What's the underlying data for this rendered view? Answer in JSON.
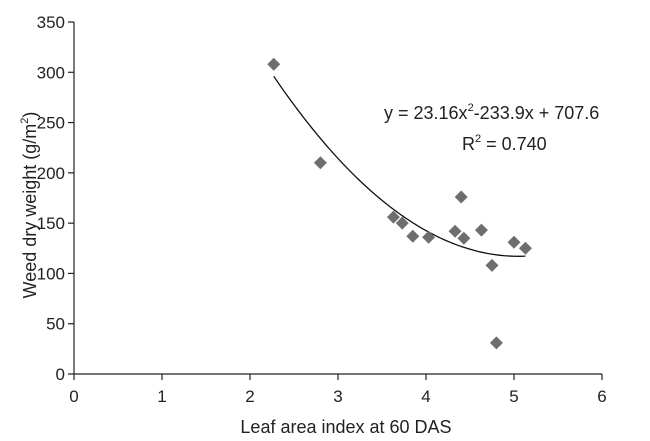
{
  "chart_data": {
    "type": "scatter",
    "xlabel": "Leaf area index at 60 DAS",
    "ylabel_main": "Weed dry weight (g/m",
    "ylabel_sup": "2",
    "ylabel_close": ")",
    "xlim": [
      0,
      6
    ],
    "ylim": [
      0,
      350
    ],
    "x_ticks": [
      "0",
      "1",
      "2",
      "3",
      "4",
      "5",
      "6"
    ],
    "y_ticks": [
      "0",
      "50",
      "100",
      "150",
      "200",
      "250",
      "300",
      "350"
    ],
    "grid": false,
    "marker": "diamond",
    "marker_color": "#6e6e6e",
    "points": [
      {
        "x": 2.27,
        "y": 308
      },
      {
        "x": 2.8,
        "y": 210
      },
      {
        "x": 3.63,
        "y": 156
      },
      {
        "x": 3.73,
        "y": 150
      },
      {
        "x": 3.85,
        "y": 137
      },
      {
        "x": 4.03,
        "y": 136
      },
      {
        "x": 4.33,
        "y": 142
      },
      {
        "x": 4.4,
        "y": 176
      },
      {
        "x": 4.43,
        "y": 135
      },
      {
        "x": 4.63,
        "y": 143
      },
      {
        "x": 4.75,
        "y": 108
      },
      {
        "x": 4.8,
        "y": 31
      },
      {
        "x": 5.0,
        "y": 131
      },
      {
        "x": 5.13,
        "y": 125
      }
    ],
    "trendline": {
      "type": "polynomial",
      "coefficients": [
        23.16,
        -233.9,
        707.6
      ],
      "x_range": [
        2.27,
        5.13
      ]
    },
    "annotation": {
      "equation_a": "y = 23.16x",
      "equation_sup": "2",
      "equation_b": "-233.9x + 707.6",
      "r2_a": "R",
      "r2_sup": "2",
      "r2_b": " = 0.740"
    }
  }
}
